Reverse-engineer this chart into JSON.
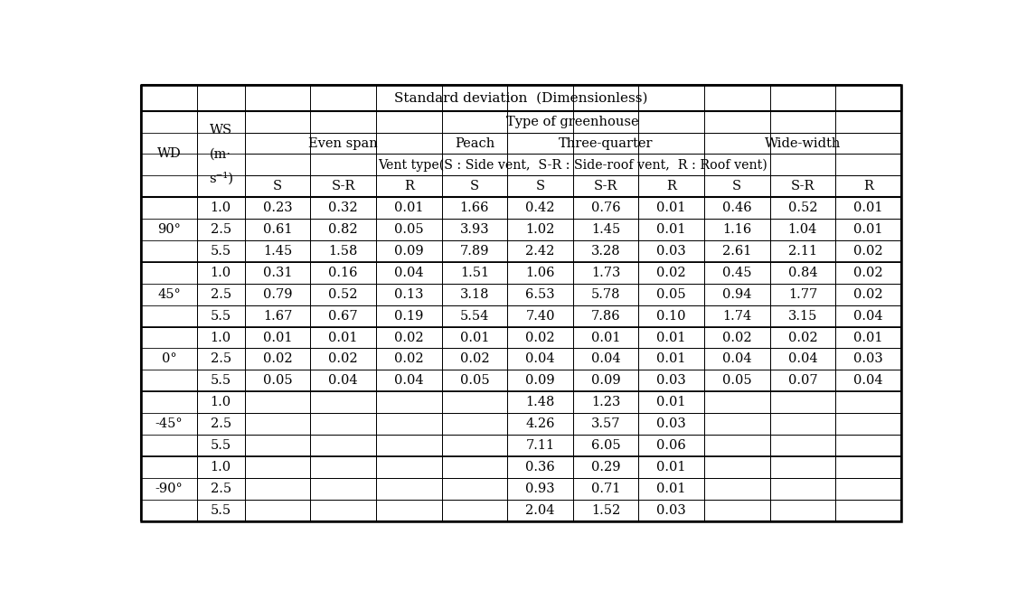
{
  "title": "Standard deviation  (Dimensionless)",
  "background_color": "#ffffff",
  "border_color": "#000000",
  "wd_groups": [
    "90°",
    "45°",
    "0°",
    "-45°",
    "-90°"
  ],
  "ws_values": [
    "1.0",
    "2.5",
    "5.5"
  ],
  "col_headers": [
    "S",
    "S-R",
    "R",
    "S",
    "S",
    "S-R",
    "R",
    "S",
    "S-R",
    "R"
  ],
  "vent_note": "Vent type(S : Side vent,  S-R : Side-roof vent,  R : Roof vent)",
  "greenhouse_types": [
    "Even span",
    "Peach",
    "Three-quarter",
    "Wide-width"
  ],
  "data": {
    "90": {
      "1.0": [
        "0.23",
        "0.32",
        "0.01",
        "1.66",
        "0.42",
        "0.76",
        "0.01",
        "0.46",
        "0.52",
        "0.01"
      ],
      "2.5": [
        "0.61",
        "0.82",
        "0.05",
        "3.93",
        "1.02",
        "1.45",
        "0.01",
        "1.16",
        "1.04",
        "0.01"
      ],
      "5.5": [
        "1.45",
        "1.58",
        "0.09",
        "7.89",
        "2.42",
        "3.28",
        "0.03",
        "2.61",
        "2.11",
        "0.02"
      ]
    },
    "45": {
      "1.0": [
        "0.31",
        "0.16",
        "0.04",
        "1.51",
        "1.06",
        "1.73",
        "0.02",
        "0.45",
        "0.84",
        "0.02"
      ],
      "2.5": [
        "0.79",
        "0.52",
        "0.13",
        "3.18",
        "6.53",
        "5.78",
        "0.05",
        "0.94",
        "1.77",
        "0.02"
      ],
      "5.5": [
        "1.67",
        "0.67",
        "0.19",
        "5.54",
        "7.40",
        "7.86",
        "0.10",
        "1.74",
        "3.15",
        "0.04"
      ]
    },
    "0": {
      "1.0": [
        "0.01",
        "0.01",
        "0.02",
        "0.01",
        "0.02",
        "0.01",
        "0.01",
        "0.02",
        "0.02",
        "0.01"
      ],
      "2.5": [
        "0.02",
        "0.02",
        "0.02",
        "0.02",
        "0.04",
        "0.04",
        "0.01",
        "0.04",
        "0.04",
        "0.03"
      ],
      "5.5": [
        "0.05",
        "0.04",
        "0.04",
        "0.05",
        "0.09",
        "0.09",
        "0.03",
        "0.05",
        "0.07",
        "0.04"
      ]
    },
    "-45": {
      "1.0": [
        "",
        "",
        "",
        "",
        "1.48",
        "1.23",
        "0.01",
        "",
        "",
        ""
      ],
      "2.5": [
        "",
        "",
        "",
        "",
        "4.26",
        "3.57",
        "0.03",
        "",
        "",
        ""
      ],
      "5.5": [
        "",
        "",
        "",
        "",
        "7.11",
        "6.05",
        "0.06",
        "",
        "",
        ""
      ]
    },
    "-90": {
      "1.0": [
        "",
        "",
        "",
        "",
        "0.36",
        "0.29",
        "0.01",
        "",
        "",
        ""
      ],
      "2.5": [
        "",
        "",
        "",
        "",
        "0.93",
        "0.71",
        "0.01",
        "",
        "",
        ""
      ],
      "5.5": [
        "",
        "",
        "",
        "",
        "2.04",
        "1.52",
        "0.03",
        "",
        "",
        ""
      ]
    }
  },
  "figsize": [
    11.25,
    6.64
  ],
  "dpi": 100
}
